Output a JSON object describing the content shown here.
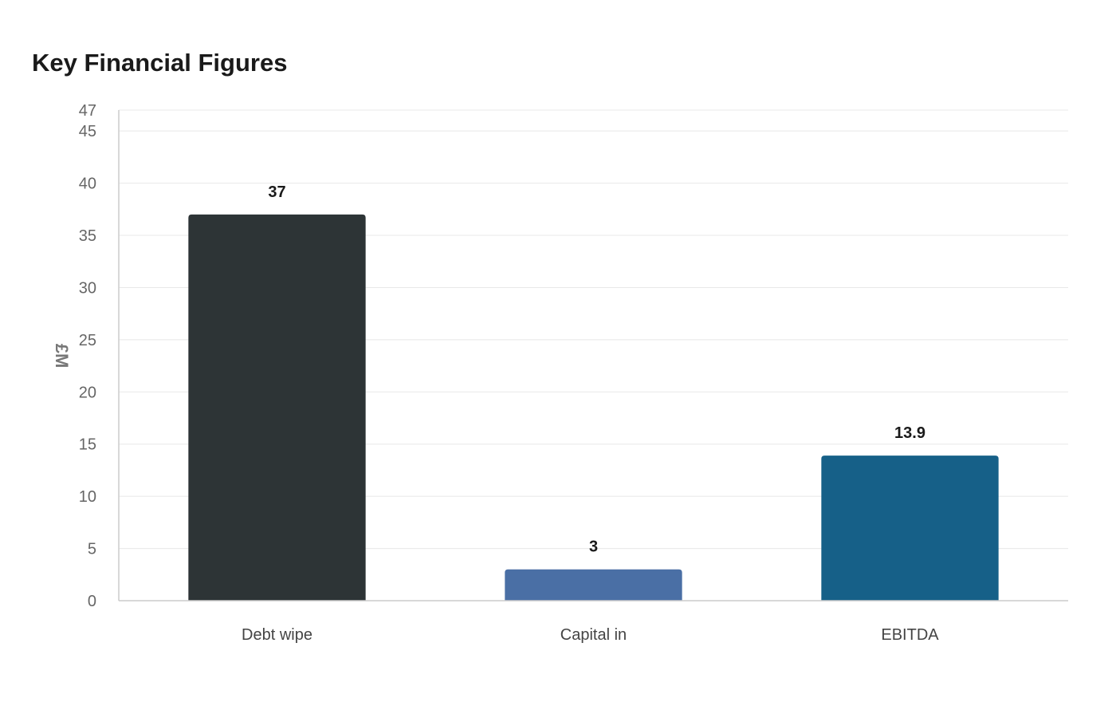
{
  "chart_data": {
    "type": "bar",
    "title": "Key Financial Figures",
    "xlabel": "",
    "ylabel": "£M",
    "categories": [
      "Debt wipe",
      "Capital in",
      "EBITDA"
    ],
    "values": [
      37,
      3,
      13.9
    ],
    "value_labels": [
      "37",
      "3",
      "13.9"
    ],
    "colors": [
      "#2d3436",
      "#4a6fa5",
      "#166088"
    ],
    "ylim": [
      0,
      47
    ],
    "yticks": [
      0,
      5,
      10,
      15,
      20,
      25,
      30,
      35,
      40,
      45,
      47
    ],
    "grid": true,
    "legend": "none"
  }
}
